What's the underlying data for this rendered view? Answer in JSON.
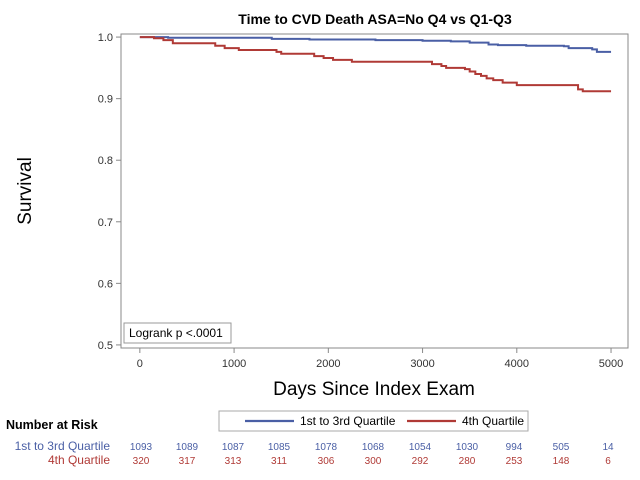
{
  "chart_data": {
    "type": "line",
    "title": "Time to CVD Death ASA=No Q4 vs Q1-Q3",
    "xlabel": "Days Since Index Exam",
    "ylabel": "Survival",
    "xlim": [
      -200,
      5180
    ],
    "ylim": [
      0.495,
      1.005
    ],
    "x_ticks": [
      0,
      1000,
      2000,
      3000,
      4000,
      5000
    ],
    "y_ticks": [
      0.5,
      0.6,
      0.7,
      0.8,
      0.9,
      1.0
    ],
    "x_tick_labels": [
      "0",
      "1000",
      "2000",
      "3000",
      "4000",
      "5000"
    ],
    "y_tick_labels": [
      "0.5",
      "0.6",
      "0.7",
      "0.8",
      "0.9",
      "1.0"
    ],
    "step": true,
    "series": [
      {
        "name": "1st to 3rd Quartile",
        "color": "#4a5fa5",
        "points": [
          [
            0,
            1.0
          ],
          [
            300,
            0.999
          ],
          [
            1400,
            0.997
          ],
          [
            1800,
            0.996
          ],
          [
            2500,
            0.995
          ],
          [
            3000,
            0.994
          ],
          [
            3300,
            0.993
          ],
          [
            3500,
            0.991
          ],
          [
            3700,
            0.988
          ],
          [
            3800,
            0.987
          ],
          [
            4100,
            0.986
          ],
          [
            4500,
            0.985
          ],
          [
            4550,
            0.982
          ],
          [
            4800,
            0.98
          ],
          [
            4850,
            0.976
          ],
          [
            5000,
            0.976
          ]
        ]
      },
      {
        "name": "4th Quartile",
        "color": "#b03a36",
        "points": [
          [
            0,
            1.0
          ],
          [
            150,
            0.998
          ],
          [
            250,
            0.995
          ],
          [
            350,
            0.99
          ],
          [
            800,
            0.986
          ],
          [
            900,
            0.982
          ],
          [
            1050,
            0.979
          ],
          [
            1450,
            0.976
          ],
          [
            1500,
            0.973
          ],
          [
            1850,
            0.969
          ],
          [
            1950,
            0.966
          ],
          [
            2050,
            0.963
          ],
          [
            2250,
            0.96
          ],
          [
            3100,
            0.956
          ],
          [
            3200,
            0.953
          ],
          [
            3250,
            0.95
          ],
          [
            3450,
            0.948
          ],
          [
            3500,
            0.944
          ],
          [
            3560,
            0.94
          ],
          [
            3620,
            0.937
          ],
          [
            3680,
            0.933
          ],
          [
            3750,
            0.93
          ],
          [
            3850,
            0.926
          ],
          [
            4000,
            0.922
          ],
          [
            4650,
            0.915
          ],
          [
            4700,
            0.912
          ],
          [
            5000,
            0.912
          ]
        ]
      }
    ],
    "annotation": "Logrank p <.0001",
    "legend": {
      "position": "bottom",
      "entries": [
        "1st to 3rd Quartile",
        "4th Quartile"
      ]
    }
  },
  "risk_table": {
    "title": "Number at Risk",
    "groups": [
      {
        "name": "1st to 3rd Quartile",
        "color": "#4a5fa5",
        "counts": [
          "1093",
          "1089",
          "1087",
          "1085",
          "1078",
          "1068",
          "1054",
          "1030",
          "994",
          "505",
          "14"
        ]
      },
      {
        "name": "4th Quartile",
        "color": "#b03a36",
        "counts": [
          "320",
          "317",
          "313",
          "311",
          "306",
          "300",
          "292",
          "280",
          "253",
          "148",
          "6"
        ]
      }
    ],
    "times": [
      0,
      500,
      1000,
      1500,
      2000,
      2500,
      3000,
      3500,
      4000,
      4500,
      5000
    ]
  }
}
